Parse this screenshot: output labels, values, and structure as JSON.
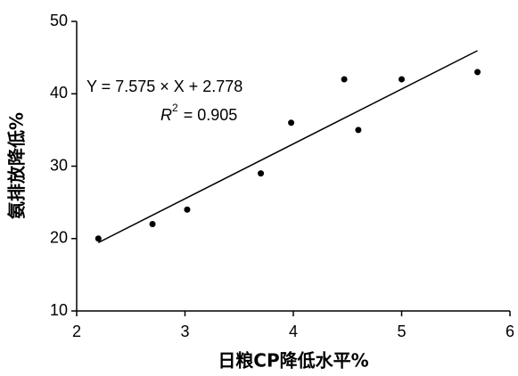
{
  "chart_data": {
    "type": "scatter",
    "x_label": "日粮CP降低水平%",
    "y_label": "氨排放降低%",
    "x": [
      2.2,
      2.7,
      3.02,
      3.7,
      3.98,
      4.47,
      4.6,
      5.0,
      5.7
    ],
    "values": [
      20,
      22,
      24,
      29,
      36,
      42,
      35,
      42,
      43
    ],
    "color": "#000000",
    "xlim": [
      2,
      6
    ],
    "xticks": [
      2,
      3,
      4,
      5,
      6
    ],
    "ylim": [
      10,
      50
    ],
    "yticks": [
      10,
      20,
      30,
      40,
      50
    ],
    "fit": {
      "slope": 7.575,
      "intercept": 2.778,
      "equation": "Y = 7.575 × X + 2.778",
      "r2_symbol": "R",
      "r2_power": "2",
      "r2_text": "= 0.905"
    }
  }
}
